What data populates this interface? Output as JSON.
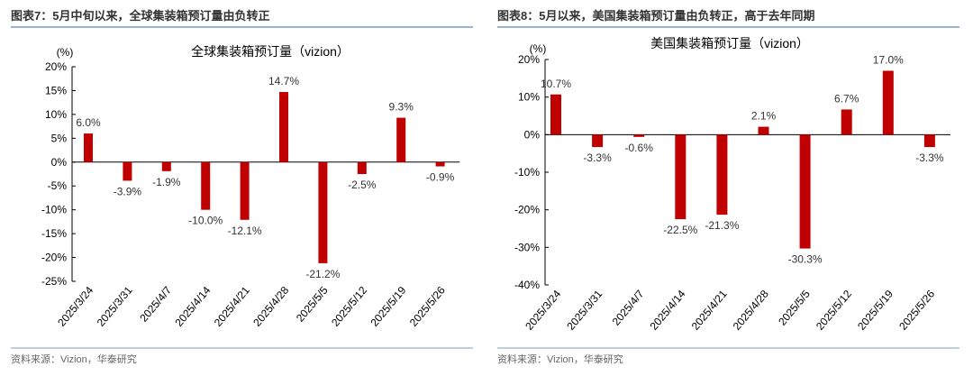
{
  "chart_data": [
    {
      "type": "bar",
      "heading": "图表7：5月中旬以来，全球集装箱预订量由负转正",
      "title": "全球集装箱预订量（vizion）",
      "unit": "(%)",
      "categories": [
        "2025/3/24",
        "2025/3/31",
        "2025/4/7",
        "2025/4/14",
        "2025/4/21",
        "2025/4/28",
        "2025/5/5",
        "2025/5/12",
        "2025/5/19",
        "2025/5/26"
      ],
      "values": [
        6.0,
        -3.9,
        -1.9,
        -10.0,
        -12.1,
        14.7,
        -21.2,
        -2.5,
        9.3,
        -0.9
      ],
      "labels": [
        "6.0%",
        "-3.9%",
        "-1.9%",
        "-10.0%",
        "-12.1%",
        "14.7%",
        "-21.2%",
        "-2.5%",
        "9.3%",
        "-0.9%"
      ],
      "ylim": [
        -25,
        20
      ],
      "yticks": [
        "20%",
        "15%",
        "10%",
        "5%",
        "0%",
        "-5%",
        "-10%",
        "-15%",
        "-20%",
        "-25%"
      ],
      "ystep": 5,
      "source": "资料来源：Vizion，华泰研究",
      "color": "#C00000"
    },
    {
      "type": "bar",
      "heading": "图表8：5月以来，美国集装箱预订量由负转正，高于去年同期",
      "title": "美国集装箱预订量（vizion）",
      "unit": "(%)",
      "categories": [
        "2025/3/24",
        "2025/3/31",
        "2025/4/7",
        "2025/4/14",
        "2025/4/21",
        "2025/4/28",
        "2025/5/5",
        "2025/5/12",
        "2025/5/19",
        "2025/5/26"
      ],
      "values": [
        10.7,
        -3.3,
        -0.6,
        -22.5,
        -21.3,
        2.1,
        -30.3,
        6.7,
        17.0,
        -3.3
      ],
      "labels": [
        "10.7%",
        "-3.3%",
        "-0.6%",
        "-22.5%",
        "-21.3%",
        "2.1%",
        "-30.3%",
        "6.7%",
        "17.0%",
        "-3.3%"
      ],
      "ylim": [
        -40,
        20
      ],
      "yticks": [
        "20%",
        "10%",
        "0%",
        "-10%",
        "-20%",
        "-30%",
        "-40%"
      ],
      "ystep": 10,
      "source": "资料来源：Vizion，华泰研究",
      "color": "#C00000"
    }
  ]
}
